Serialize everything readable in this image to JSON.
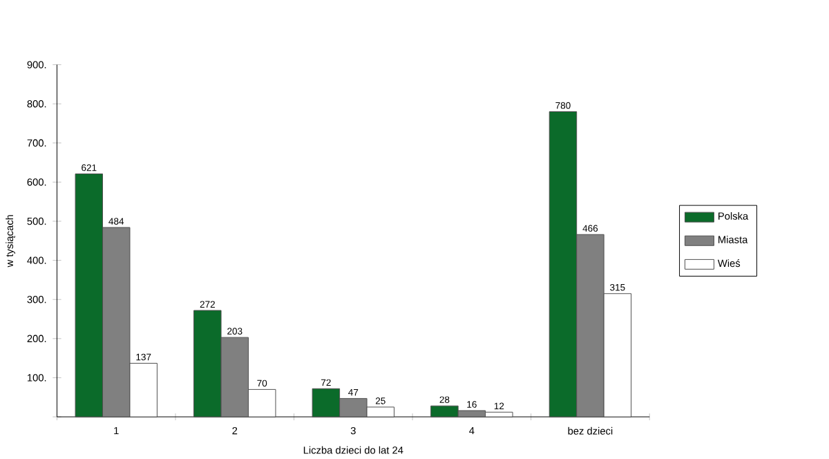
{
  "chart_data": {
    "type": "bar",
    "xlabel": "Liczba dzieci do lat 24",
    "ylabel": "w tysiącach",
    "categories": [
      "1",
      "2",
      "3",
      "4",
      "bez dzieci"
    ],
    "series": [
      {
        "name": "Polska",
        "color": "#0b6b2a",
        "values": [
          621,
          272,
          72,
          28,
          780
        ]
      },
      {
        "name": "Miasta",
        "color": "#808080",
        "values": [
          484,
          203,
          47,
          16,
          466
        ]
      },
      {
        "name": "Wieś",
        "color": "#ffffff",
        "values": [
          137,
          70,
          25,
          12,
          315
        ]
      }
    ],
    "data_labels": true,
    "ylim": [
      0,
      900
    ],
    "yticks": [
      {
        "value": 0,
        "label": null
      },
      {
        "value": 100,
        "label": "100."
      },
      {
        "value": 200,
        "label": "200."
      },
      {
        "value": 300,
        "label": "300."
      },
      {
        "value": 400,
        "label": "400."
      },
      {
        "value": 500,
        "label": "500."
      },
      {
        "value": 600,
        "label": "600."
      },
      {
        "value": 700,
        "label": "700."
      },
      {
        "value": 800,
        "label": "800."
      },
      {
        "value": 900,
        "label": "900."
      }
    ],
    "legend": "right",
    "grid": false
  }
}
